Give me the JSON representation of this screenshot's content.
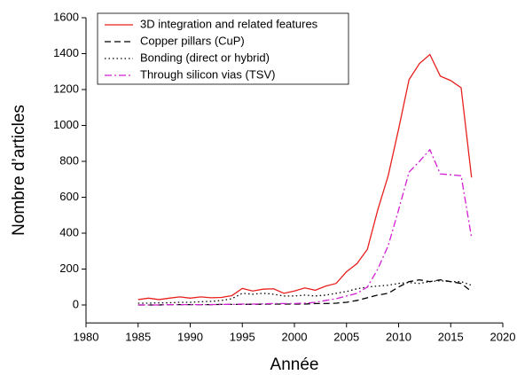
{
  "chart_data": {
    "type": "line",
    "x_label": "Année",
    "y_label": "Nombre d’articles",
    "x": [
      1985,
      1986,
      1987,
      1988,
      1989,
      1990,
      1991,
      1992,
      1993,
      1994,
      1995,
      1996,
      1997,
      1998,
      1999,
      2000,
      2001,
      2002,
      2003,
      2004,
      2005,
      2006,
      2007,
      2008,
      2009,
      2010,
      2011,
      2012,
      2013,
      2014,
      2015,
      2016,
      2017
    ],
    "series": [
      {
        "name": "3D integration and related features",
        "color": "#e8201e",
        "linestyle": "solid",
        "values": [
          30,
          38,
          30,
          38,
          45,
          38,
          45,
          40,
          42,
          52,
          92,
          78,
          88,
          90,
          65,
          78,
          95,
          82,
          105,
          120,
          185,
          230,
          310,
          530,
          720,
          980,
          1255,
          1345,
          1395,
          1275,
          1250,
          1210,
          710
        ]
      },
      {
        "name": "Copper pillars (CuP)",
        "color": "#000000",
        "linestyle": "dashed",
        "values": [
          0,
          0,
          0,
          2,
          2,
          2,
          2,
          2,
          3,
          3,
          3,
          4,
          4,
          5,
          5,
          5,
          5,
          8,
          8,
          10,
          15,
          25,
          40,
          55,
          65,
          100,
          130,
          140,
          130,
          140,
          130,
          120,
          75
        ]
      },
      {
        "name": "Bonding (direct or hybrid)",
        "color": "#000000",
        "linestyle": "dotted",
        "values": [
          10,
          10,
          12,
          12,
          15,
          15,
          18,
          20,
          25,
          35,
          65,
          60,
          65,
          60,
          50,
          50,
          55,
          50,
          55,
          65,
          75,
          90,
          100,
          105,
          110,
          120,
          125,
          120,
          130,
          135,
          130,
          130,
          110
        ]
      },
      {
        "name": "Through silicon vias (TSV)",
        "color": "#d21fd2",
        "linestyle": "dashdot",
        "values": [
          0,
          0,
          0,
          2,
          2,
          2,
          2,
          2,
          3,
          3,
          5,
          5,
          6,
          8,
          8,
          8,
          10,
          15,
          25,
          35,
          50,
          65,
          100,
          200,
          330,
          530,
          740,
          800,
          865,
          730,
          725,
          720,
          375
        ]
      }
    ],
    "xlim": [
      1980,
      2020
    ],
    "xticks": [
      1980,
      1985,
      1990,
      1995,
      2000,
      2005,
      2010,
      2015,
      2020
    ],
    "ylim": [
      -100,
      1600
    ],
    "yticks": [
      0,
      200,
      400,
      600,
      800,
      1000,
      1200,
      1400,
      1600
    ],
    "legend": "upper left"
  }
}
